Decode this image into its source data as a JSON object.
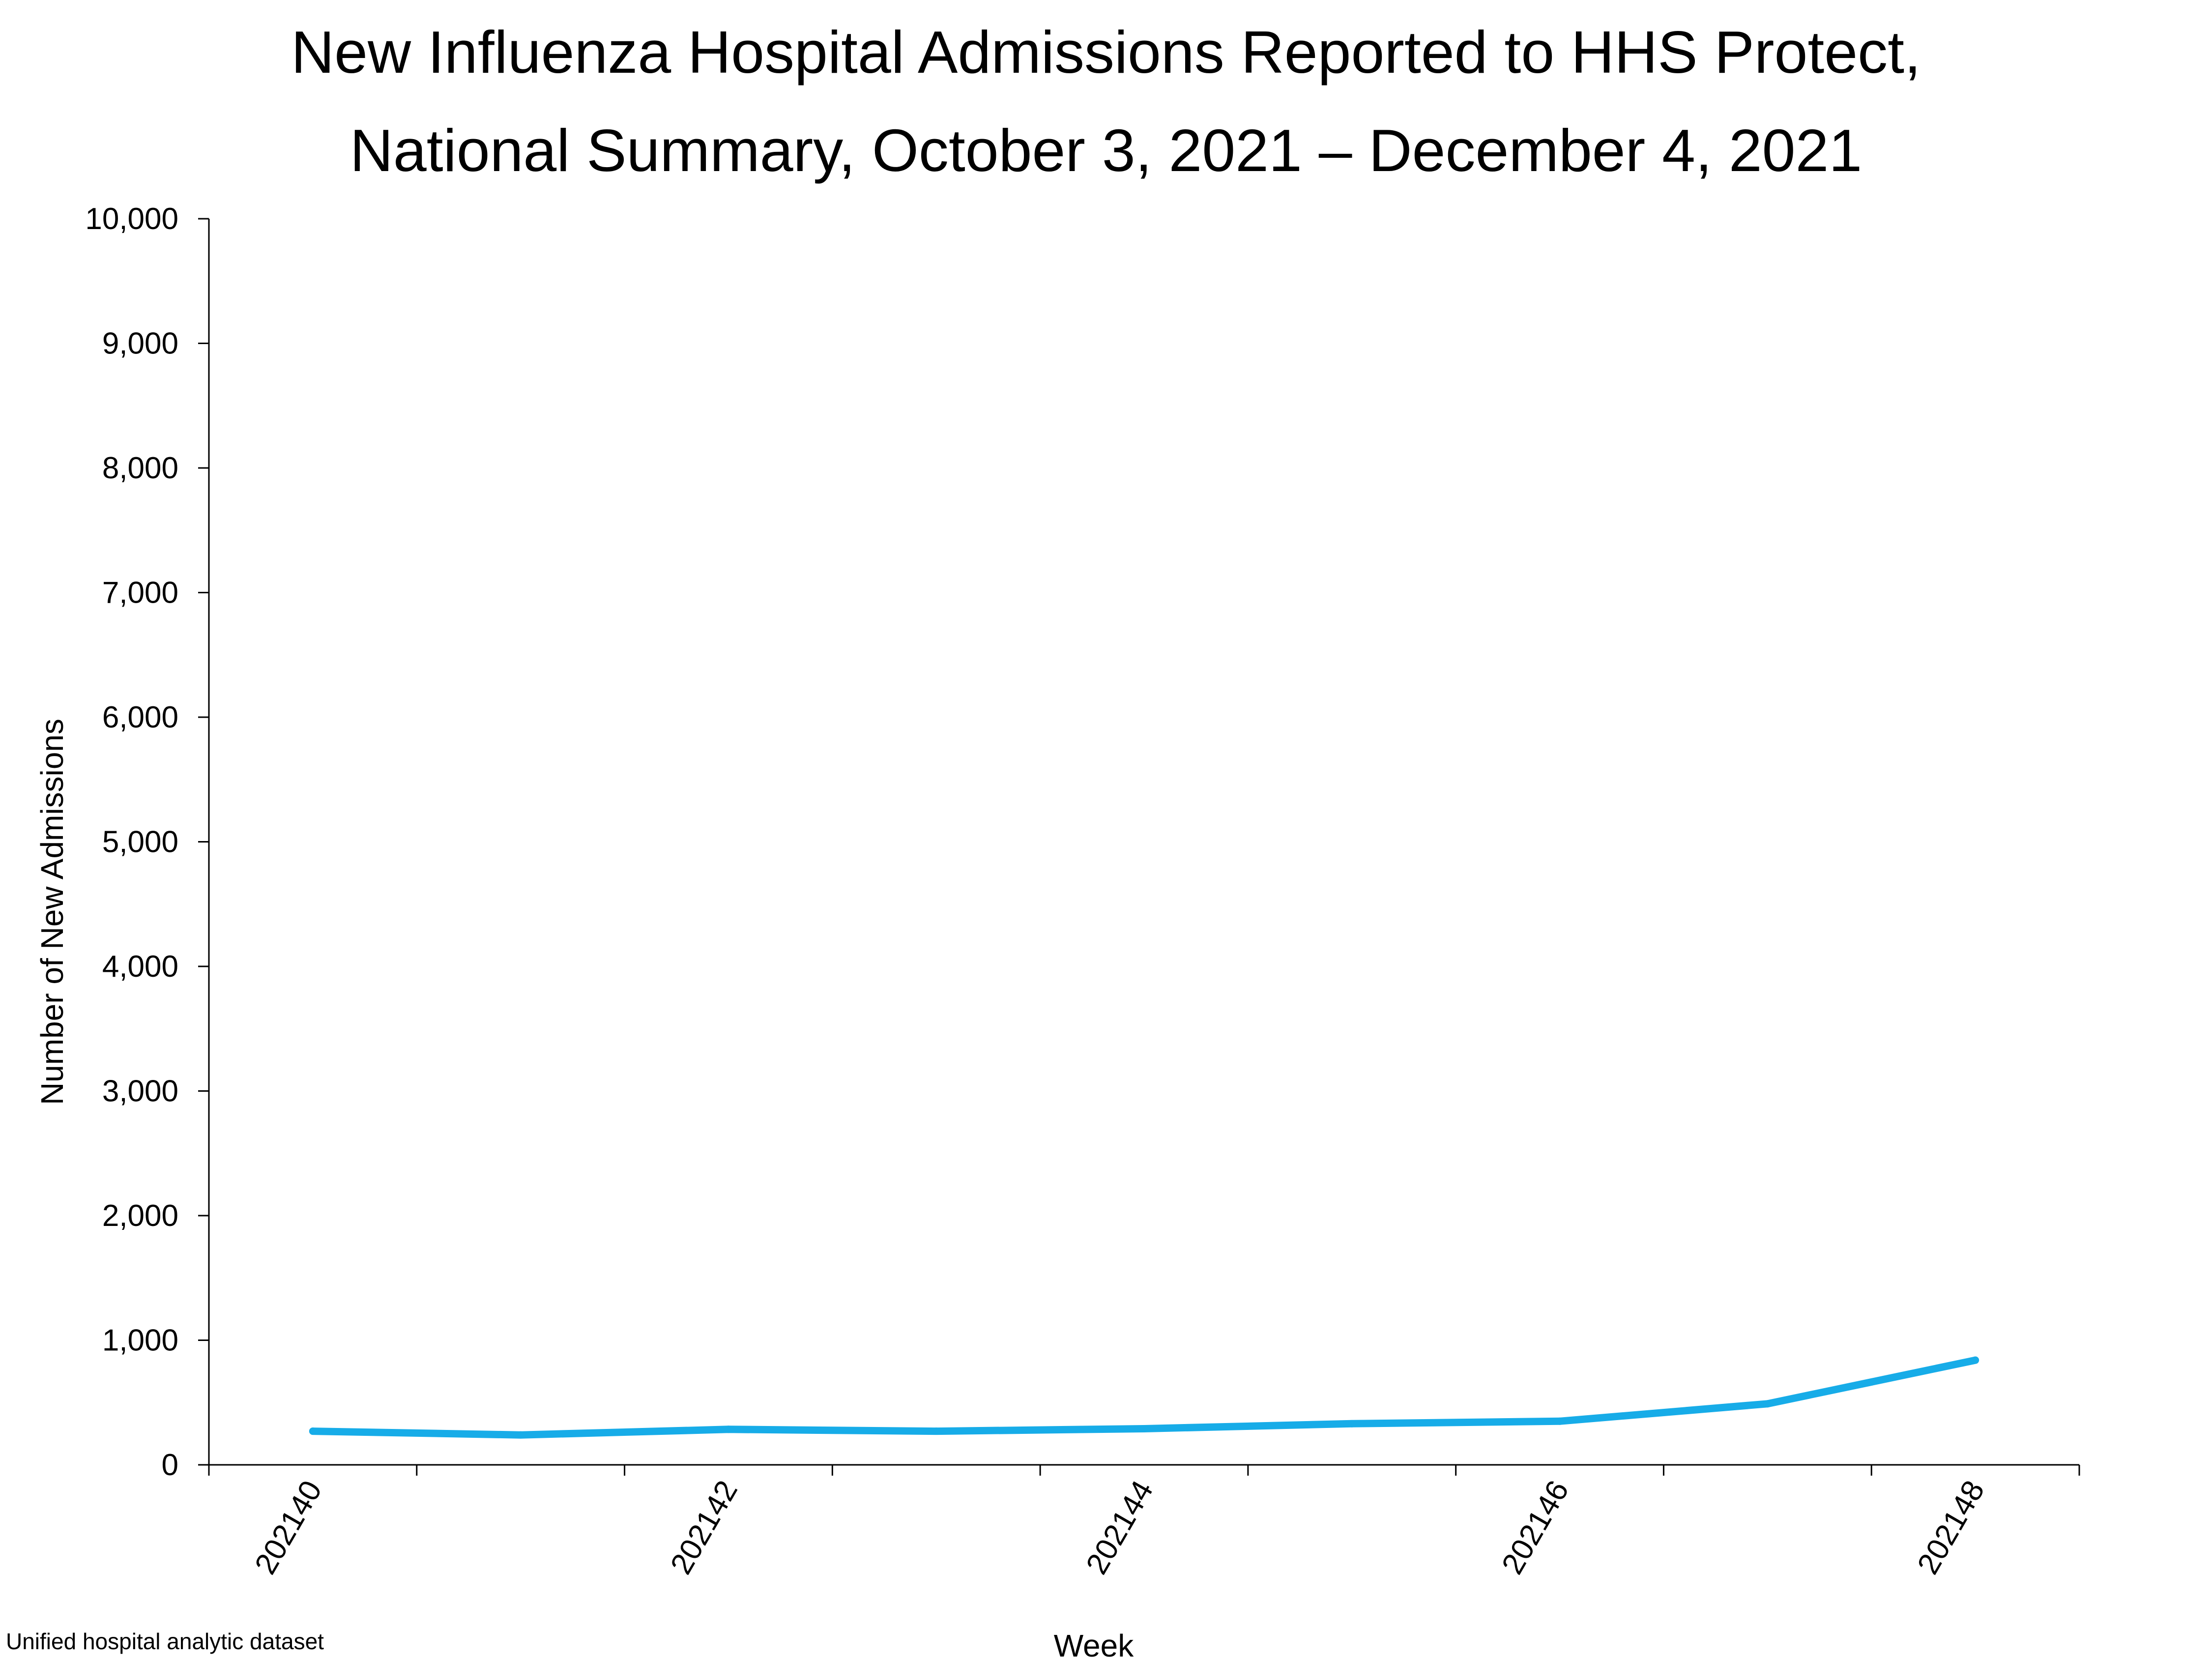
{
  "chart_data": {
    "type": "line",
    "title_lines": [
      "New Influenza Hospital Admissions Reported to HHS Protect,",
      "National Summary, October 3, 2021 – December 4, 2021"
    ],
    "xlabel": "Week",
    "ylabel": "Number of New Admissions",
    "x": [
      "202140",
      "202141",
      "202142",
      "202143",
      "202144",
      "202145",
      "202146",
      "202147",
      "202148"
    ],
    "x_tick_labels": [
      "202140",
      "",
      "202142",
      "",
      "202144",
      "",
      "202146",
      "",
      "202148"
    ],
    "ylim": [
      0,
      10000
    ],
    "y_ticks": [
      0,
      1000,
      2000,
      3000,
      4000,
      5000,
      6000,
      7000,
      8000,
      9000,
      10000
    ],
    "y_tick_labels": [
      "0",
      "1,000",
      "2,000",
      "3,000",
      "4,000",
      "5,000",
      "6,000",
      "7,000",
      "8,000",
      "9,000",
      "10,000"
    ],
    "grid": false,
    "legend": false,
    "series": [
      {
        "color": "#17ACE8",
        "values": [
          270,
          240,
          285,
          270,
          290,
          330,
          350,
          490,
          840
        ]
      }
    ],
    "source_note": "Unified hospital analytic dataset"
  }
}
